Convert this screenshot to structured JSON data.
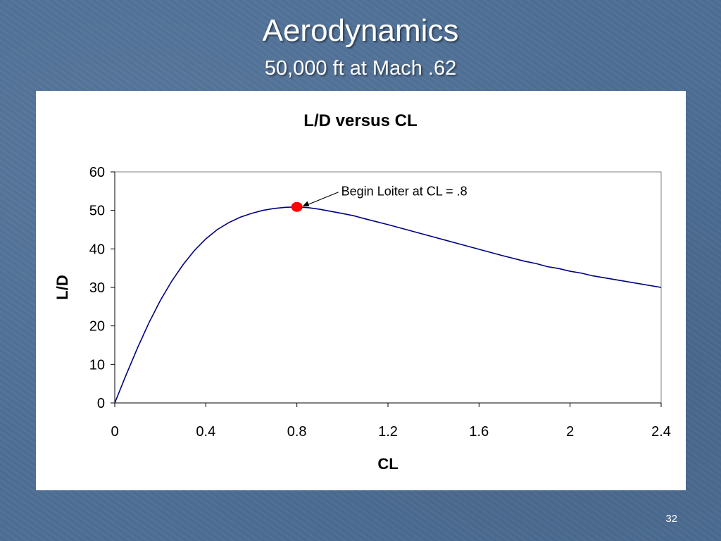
{
  "slide": {
    "title": "Aerodynamics",
    "subtitle": "50,000 ft at Mach .62",
    "page_number": "32"
  },
  "colors": {
    "background": "#4e6f96",
    "curve": "#000080",
    "marker": "#ff0000"
  },
  "chart_data": {
    "type": "line",
    "title": "L/D versus CL",
    "xlabel": "CL",
    "ylabel": "L/D",
    "xlim": [
      0,
      2.4
    ],
    "ylim": [
      0,
      60
    ],
    "xticks": [
      "0",
      "0.4",
      "0.8",
      "1.2",
      "1.6",
      "2",
      "2.4"
    ],
    "yticks": [
      "0",
      "10",
      "20",
      "30",
      "40",
      "50",
      "60"
    ],
    "grid": false,
    "legend": "none",
    "series": [
      {
        "x": [
          0,
          0.05,
          0.1,
          0.15,
          0.2,
          0.25,
          0.3,
          0.35,
          0.4,
          0.45,
          0.5,
          0.55,
          0.6,
          0.65,
          0.7,
          0.75,
          0.8,
          0.85,
          0.9,
          1.0,
          1.05,
          1.1,
          1.2,
          1.3,
          1.4,
          1.5,
          1.6,
          1.7,
          1.8,
          1.85,
          1.9,
          1.95,
          2.0,
          2.05,
          2.1,
          2.2,
          2.3,
          2.4
        ],
        "y": [
          0,
          7.3,
          14.3,
          20.8,
          26.6,
          31.6,
          35.9,
          39.6,
          42.6,
          45.0,
          46.8,
          48.2,
          49.2,
          50.0,
          50.5,
          50.8,
          50.9,
          50.7,
          50.3,
          49.2,
          48.6,
          47.8,
          46.3,
          44.7,
          43.1,
          41.5,
          39.9,
          38.3,
          36.8,
          36.2,
          35.4,
          34.9,
          34.2,
          33.7,
          33.0,
          32.0,
          31.0,
          30.0
        ]
      }
    ],
    "annotation": {
      "text": "Begin Loiter at CL = .8",
      "x": 0.8,
      "y": 50.9
    }
  }
}
